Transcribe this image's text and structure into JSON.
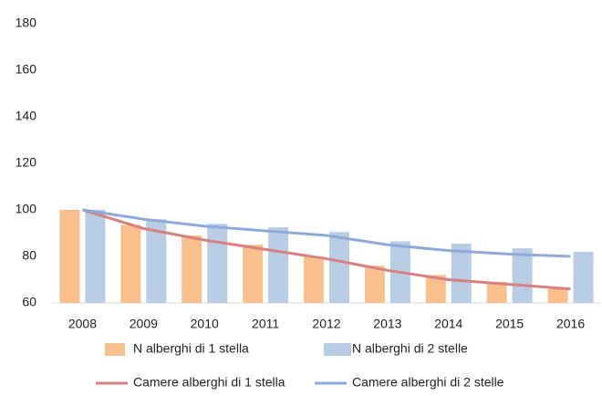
{
  "chart_data": {
    "type": "bar",
    "categories": [
      "2008",
      "2009",
      "2010",
      "2011",
      "2012",
      "2013",
      "2014",
      "2015",
      "2016"
    ],
    "series": [
      {
        "name": "N alberghi di 1 stella",
        "type": "bar",
        "color": "#f9c08e",
        "values": [
          100,
          93.5,
          89,
          85,
          80,
          76,
          72,
          69,
          66
        ]
      },
      {
        "name": "N alberghi di 2 stelle",
        "type": "bar",
        "color": "#b8cce4",
        "values": [
          100,
          96,
          94,
          92.5,
          90.5,
          86.5,
          85.5,
          83.5,
          82
        ]
      },
      {
        "name": "Camere alberghi di 1 stella",
        "type": "line",
        "color": "#d98080",
        "values": [
          100,
          92,
          87,
          83,
          79,
          74,
          70,
          68,
          66
        ]
      },
      {
        "name": "Camere alberghi di 2 stelle",
        "type": "line",
        "color": "#8eaadb",
        "values": [
          100,
          96,
          93,
          91,
          89,
          85,
          82.5,
          81,
          80
        ]
      }
    ],
    "ylim": [
      60,
      180
    ],
    "yticks": [
      60,
      80,
      100,
      120,
      140,
      160,
      180
    ],
    "grid": false,
    "legend": "bottom"
  }
}
